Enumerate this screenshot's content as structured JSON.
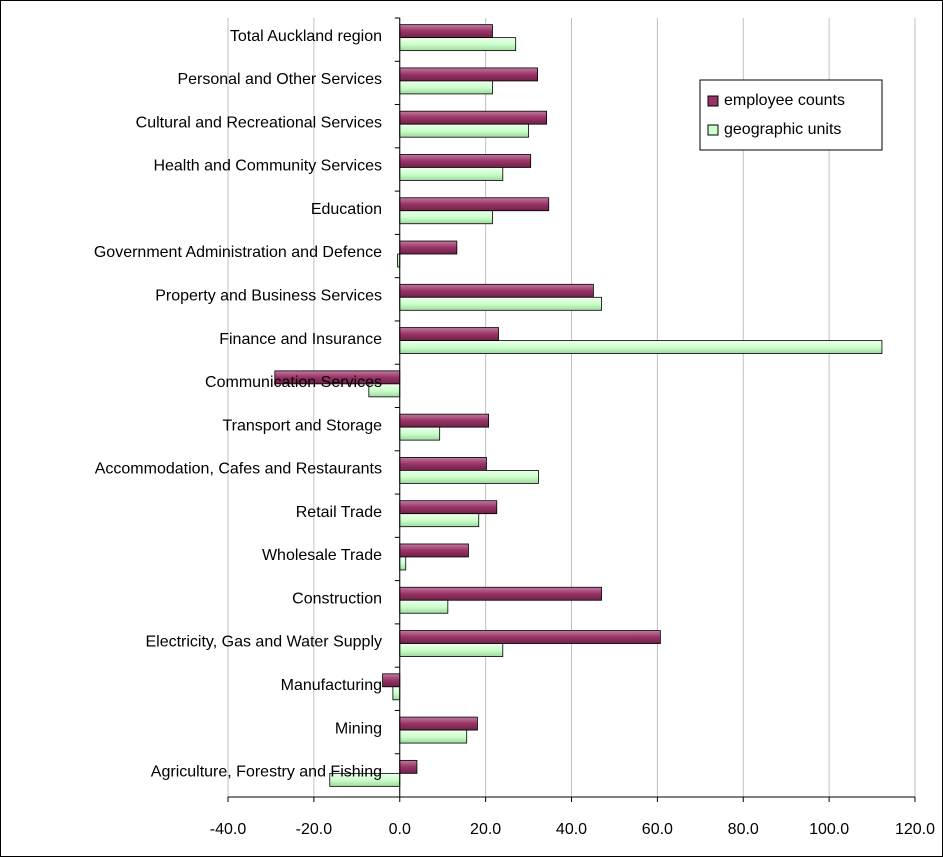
{
  "chart_data": {
    "type": "barh",
    "categories": [
      "Total Auckland region",
      "Personal and Other Services",
      "Cultural and Recreational Services",
      "Health and Community Services",
      "Education",
      "Government Administration and Defence",
      "Property and Business Services",
      "Finance and Insurance",
      "Communication Services",
      "Transport and Storage",
      "Accommodation, Cafes and Restaurants",
      "Retail Trade",
      "Wholesale Trade",
      "Construction",
      "Electricity, Gas and Water Supply",
      "Manufacturing",
      "Mining",
      "Agriculture, Forestry and Fishing"
    ],
    "series": [
      {
        "name": "employee counts",
        "color": "#993366",
        "values": [
          21.6,
          32.1,
          34.2,
          30.5,
          34.7,
          13.3,
          45.1,
          23.0,
          -29.1,
          20.7,
          20.2,
          22.6,
          16.0,
          47.0,
          60.7,
          -4.0,
          18.1,
          4.0
        ]
      },
      {
        "name": "geographic units",
        "color": "#ccffcc",
        "values": [
          27.0,
          21.6,
          30.0,
          24.0,
          21.6,
          -0.5,
          47.0,
          112.3,
          -7.2,
          9.3,
          32.3,
          18.4,
          1.4,
          11.2,
          24.0,
          -1.6,
          15.6,
          -16.3
        ]
      }
    ],
    "xlim": [
      -40,
      120
    ],
    "xticks": [
      {
        "value": -40,
        "label": "-40.0"
      },
      {
        "value": -20,
        "label": "-20.0"
      },
      {
        "value": 0,
        "label": "0.0"
      },
      {
        "value": 20,
        "label": "20.0"
      },
      {
        "value": 40,
        "label": "40.0"
      },
      {
        "value": 60,
        "label": "60.0"
      },
      {
        "value": 80,
        "label": "80.0"
      },
      {
        "value": 100,
        "label": "100.0"
      },
      {
        "value": 120,
        "label": "120.0"
      }
    ],
    "grid": true,
    "legend": "top right"
  }
}
